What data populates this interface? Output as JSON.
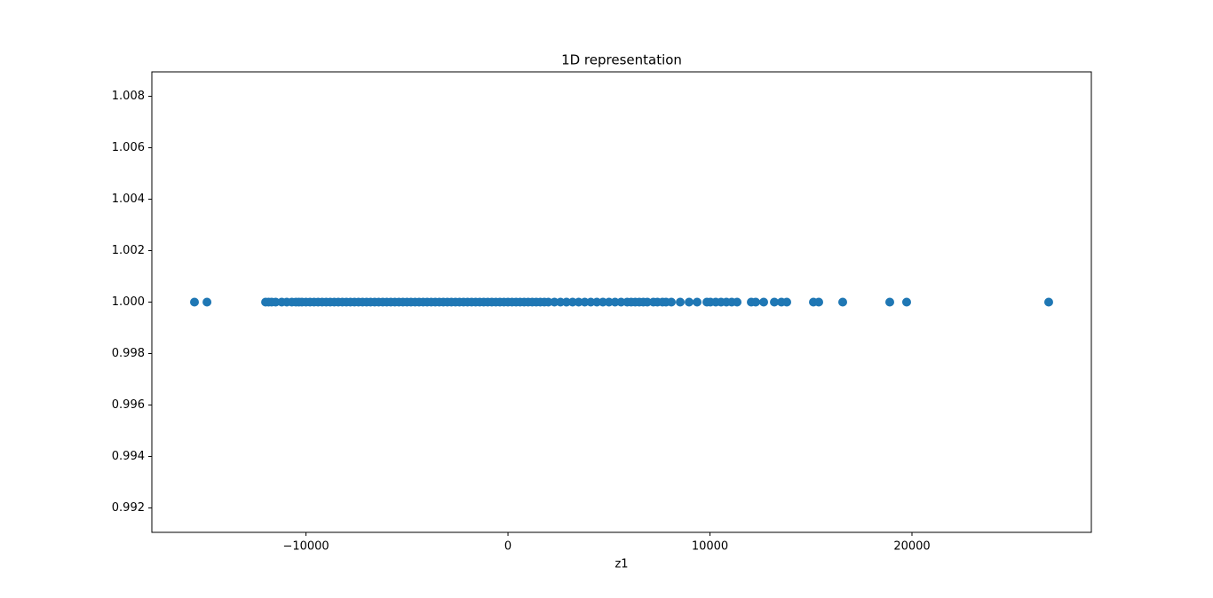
{
  "chart_data": {
    "type": "scatter",
    "title": "1D representation",
    "x_label": "z1",
    "color": "#1f77b4",
    "series": [
      {
        "color": "#1f77b4",
        "x": [
          -15520,
          -14900,
          -12000,
          -11850,
          -11700,
          -11500,
          -11200,
          -10950,
          -10700,
          -10500,
          -10350,
          -10200,
          -10000,
          -9800,
          -9600,
          -9400,
          -9200,
          -9000,
          -8800,
          -8600,
          -8400,
          -8200,
          -8000,
          -7800,
          -7600,
          -7400,
          -7200,
          -7000,
          -6800,
          -6600,
          -6400,
          -6200,
          -6000,
          -5800,
          -5600,
          -5400,
          -5200,
          -5000,
          -4800,
          -4600,
          -4400,
          -4200,
          -4000,
          -3800,
          -3600,
          -3400,
          -3200,
          -3000,
          -2800,
          -2600,
          -2400,
          -2200,
          -2000,
          -1800,
          -1600,
          -1400,
          -1200,
          -1000,
          -800,
          -600,
          -400,
          -200,
          0,
          200,
          400,
          600,
          800,
          1000,
          1200,
          1400,
          1600,
          1800,
          2000,
          2300,
          2600,
          2900,
          3200,
          3500,
          3800,
          4100,
          4400,
          4700,
          5000,
          5300,
          5600,
          5900,
          6100,
          6300,
          6500,
          6700,
          6900,
          7200,
          7400,
          7648,
          7824,
          8088,
          8527,
          8967,
          9363,
          9846,
          10022,
          10286,
          10549,
          10813,
          11077,
          11341,
          12044,
          12264,
          12659,
          13187,
          13538,
          13802,
          15121,
          15385,
          16571,
          18901,
          19736,
          26769
        ],
        "y": [
          1,
          1,
          1,
          1,
          1,
          1,
          1,
          1,
          1,
          1,
          1,
          1,
          1,
          1,
          1,
          1,
          1,
          1,
          1,
          1,
          1,
          1,
          1,
          1,
          1,
          1,
          1,
          1,
          1,
          1,
          1,
          1,
          1,
          1,
          1,
          1,
          1,
          1,
          1,
          1,
          1,
          1,
          1,
          1,
          1,
          1,
          1,
          1,
          1,
          1,
          1,
          1,
          1,
          1,
          1,
          1,
          1,
          1,
          1,
          1,
          1,
          1,
          1,
          1,
          1,
          1,
          1,
          1,
          1,
          1,
          1,
          1,
          1,
          1,
          1,
          1,
          1,
          1,
          1,
          1,
          1,
          1,
          1,
          1,
          1,
          1,
          1,
          1,
          1,
          1,
          1,
          1,
          1,
          1,
          1,
          1,
          1,
          1,
          1,
          1,
          1,
          1,
          1,
          1,
          1,
          1,
          1,
          1,
          1,
          1,
          1,
          1,
          1,
          1,
          1,
          1,
          1,
          1
        ]
      }
    ],
    "xlim": [
      -17630,
      28880
    ],
    "ylim": [
      0.99105,
      1.00895
    ],
    "xticks": [
      {
        "value": -10000,
        "label": "−10000"
      },
      0,
      10000,
      20000
    ],
    "yticks": [
      0.992,
      0.994,
      0.996,
      0.998,
      {
        "value": 1,
        "label": "1.000"
      },
      1.002,
      1.004,
      1.006,
      1.008
    ]
  }
}
